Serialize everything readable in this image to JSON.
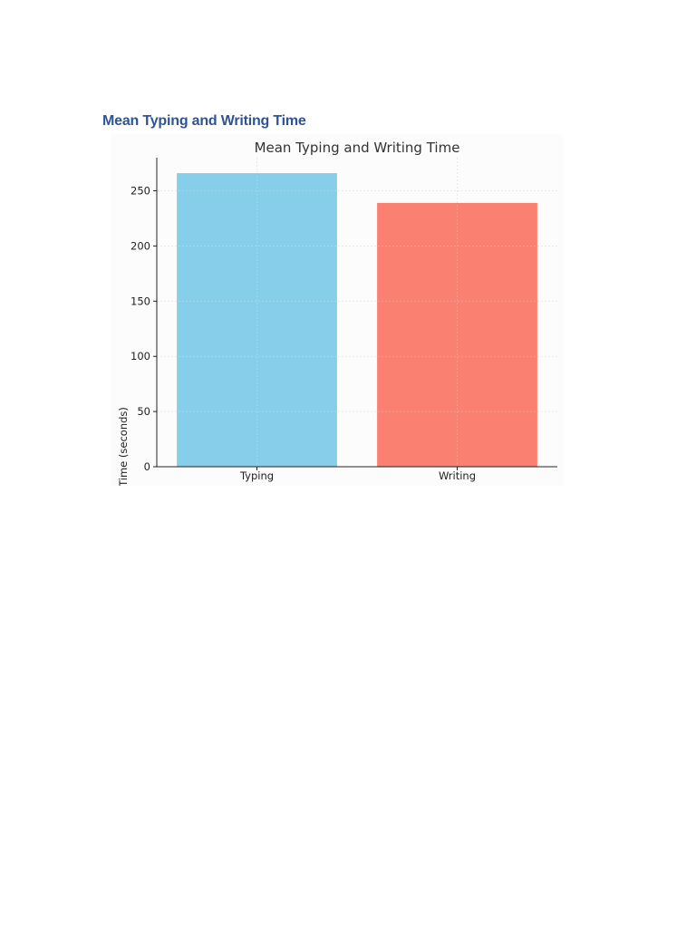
{
  "document": {
    "heading": "Mean Typing and Writing Time"
  },
  "chart_data": {
    "type": "bar",
    "title": "Mean Typing and Writing Time",
    "xlabel": "",
    "ylabel": "Time (seconds)",
    "categories": [
      "Typing",
      "Writing"
    ],
    "values": [
      266,
      239
    ],
    "colors": [
      "#87ceeb",
      "#fa8072"
    ],
    "ylim": [
      0,
      280
    ],
    "yticks": [
      0,
      50,
      100,
      150,
      200,
      250
    ],
    "grid": true,
    "legend": "none"
  }
}
